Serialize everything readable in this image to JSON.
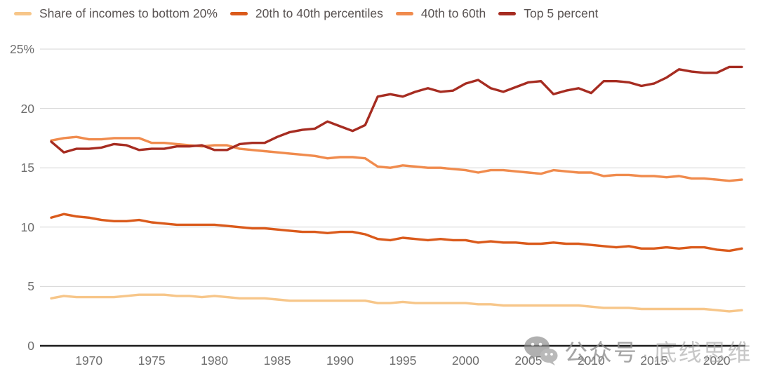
{
  "chart_data": {
    "type": "line",
    "title": "",
    "xlabel": "",
    "ylabel": "",
    "ylim": [
      0,
      25
    ],
    "grid": true,
    "legend_position": "top-left",
    "x": [
      1967,
      1968,
      1969,
      1970,
      1971,
      1972,
      1973,
      1974,
      1975,
      1976,
      1977,
      1978,
      1979,
      1980,
      1981,
      1982,
      1983,
      1984,
      1985,
      1986,
      1987,
      1988,
      1989,
      1990,
      1991,
      1992,
      1993,
      1994,
      1995,
      1996,
      1997,
      1998,
      1999,
      2000,
      2001,
      2002,
      2003,
      2004,
      2005,
      2006,
      2007,
      2008,
      2009,
      2010,
      2011,
      2012,
      2013,
      2014,
      2015,
      2016,
      2017,
      2018,
      2019,
      2020,
      2021,
      2022
    ],
    "series": [
      {
        "name": "Share of incomes to bottom 20%",
        "color": "#F7C689",
        "values": [
          4.0,
          4.2,
          4.1,
          4.1,
          4.1,
          4.1,
          4.2,
          4.3,
          4.3,
          4.3,
          4.2,
          4.2,
          4.1,
          4.2,
          4.1,
          4.0,
          4.0,
          4.0,
          3.9,
          3.8,
          3.8,
          3.8,
          3.8,
          3.8,
          3.8,
          3.8,
          3.6,
          3.6,
          3.7,
          3.6,
          3.6,
          3.6,
          3.6,
          3.6,
          3.5,
          3.5,
          3.4,
          3.4,
          3.4,
          3.4,
          3.4,
          3.4,
          3.4,
          3.3,
          3.2,
          3.2,
          3.2,
          3.1,
          3.1,
          3.1,
          3.1,
          3.1,
          3.1,
          3.0,
          2.9,
          3.0
        ]
      },
      {
        "name": "20th to 40th percentiles",
        "color": "#DA5A1B",
        "values": [
          10.8,
          11.1,
          10.9,
          10.8,
          10.6,
          10.5,
          10.5,
          10.6,
          10.4,
          10.3,
          10.2,
          10.2,
          10.2,
          10.2,
          10.1,
          10.0,
          9.9,
          9.9,
          9.8,
          9.7,
          9.6,
          9.6,
          9.5,
          9.6,
          9.6,
          9.4,
          9.0,
          8.9,
          9.1,
          9.0,
          8.9,
          9.0,
          8.9,
          8.9,
          8.7,
          8.8,
          8.7,
          8.7,
          8.6,
          8.6,
          8.7,
          8.6,
          8.6,
          8.5,
          8.4,
          8.3,
          8.4,
          8.2,
          8.2,
          8.3,
          8.2,
          8.3,
          8.3,
          8.1,
          8.0,
          8.2
        ]
      },
      {
        "name": "40th to 60th",
        "color": "#F08B4D",
        "values": [
          17.3,
          17.5,
          17.6,
          17.4,
          17.4,
          17.5,
          17.5,
          17.5,
          17.1,
          17.1,
          17.0,
          16.9,
          16.8,
          16.9,
          16.9,
          16.6,
          16.5,
          16.4,
          16.3,
          16.2,
          16.1,
          16.0,
          15.8,
          15.9,
          15.9,
          15.8,
          15.1,
          15.0,
          15.2,
          15.1,
          15.0,
          15.0,
          14.9,
          14.8,
          14.6,
          14.8,
          14.8,
          14.7,
          14.6,
          14.5,
          14.8,
          14.7,
          14.6,
          14.6,
          14.3,
          14.4,
          14.4,
          14.3,
          14.3,
          14.2,
          14.3,
          14.1,
          14.1,
          14.0,
          13.9,
          14.0
        ]
      },
      {
        "name": "Top 5 percent",
        "color": "#A62C21",
        "values": [
          17.2,
          16.3,
          16.6,
          16.6,
          16.7,
          17.0,
          16.9,
          16.5,
          16.6,
          16.6,
          16.8,
          16.8,
          16.9,
          16.5,
          16.5,
          17.0,
          17.1,
          17.1,
          17.6,
          18.0,
          18.2,
          18.3,
          18.9,
          18.5,
          18.1,
          18.6,
          21.0,
          21.2,
          21.0,
          21.4,
          21.7,
          21.4,
          21.5,
          22.1,
          22.4,
          21.7,
          21.4,
          21.8,
          22.2,
          22.3,
          21.2,
          21.5,
          21.7,
          21.3,
          22.3,
          22.3,
          22.2,
          21.9,
          22.1,
          22.6,
          23.3,
          23.1,
          23.0,
          23.0,
          23.5,
          23.5
        ]
      }
    ],
    "yticks": [
      {
        "label": "25%",
        "value": 25
      },
      {
        "label": "20",
        "value": 20
      },
      {
        "label": "15",
        "value": 15
      },
      {
        "label": "10",
        "value": 10
      },
      {
        "label": "5",
        "value": 5
      },
      {
        "label": "0",
        "value": 0
      }
    ],
    "xticks": [
      "1970",
      "1975",
      "1980",
      "1985",
      "1990",
      "1995",
      "2000",
      "2005",
      "2010",
      "2015",
      "2020"
    ]
  },
  "watermark": {
    "icon": "wechat-icon",
    "text_left": "公众号",
    "separator": "·",
    "text_right": "底线思维"
  },
  "colors": {
    "grid": "#d6d6d6",
    "axis": "#1c1c1c",
    "tick_text": "#6e6e6e",
    "legend_text": "#595352",
    "background": "#ffffff"
  }
}
